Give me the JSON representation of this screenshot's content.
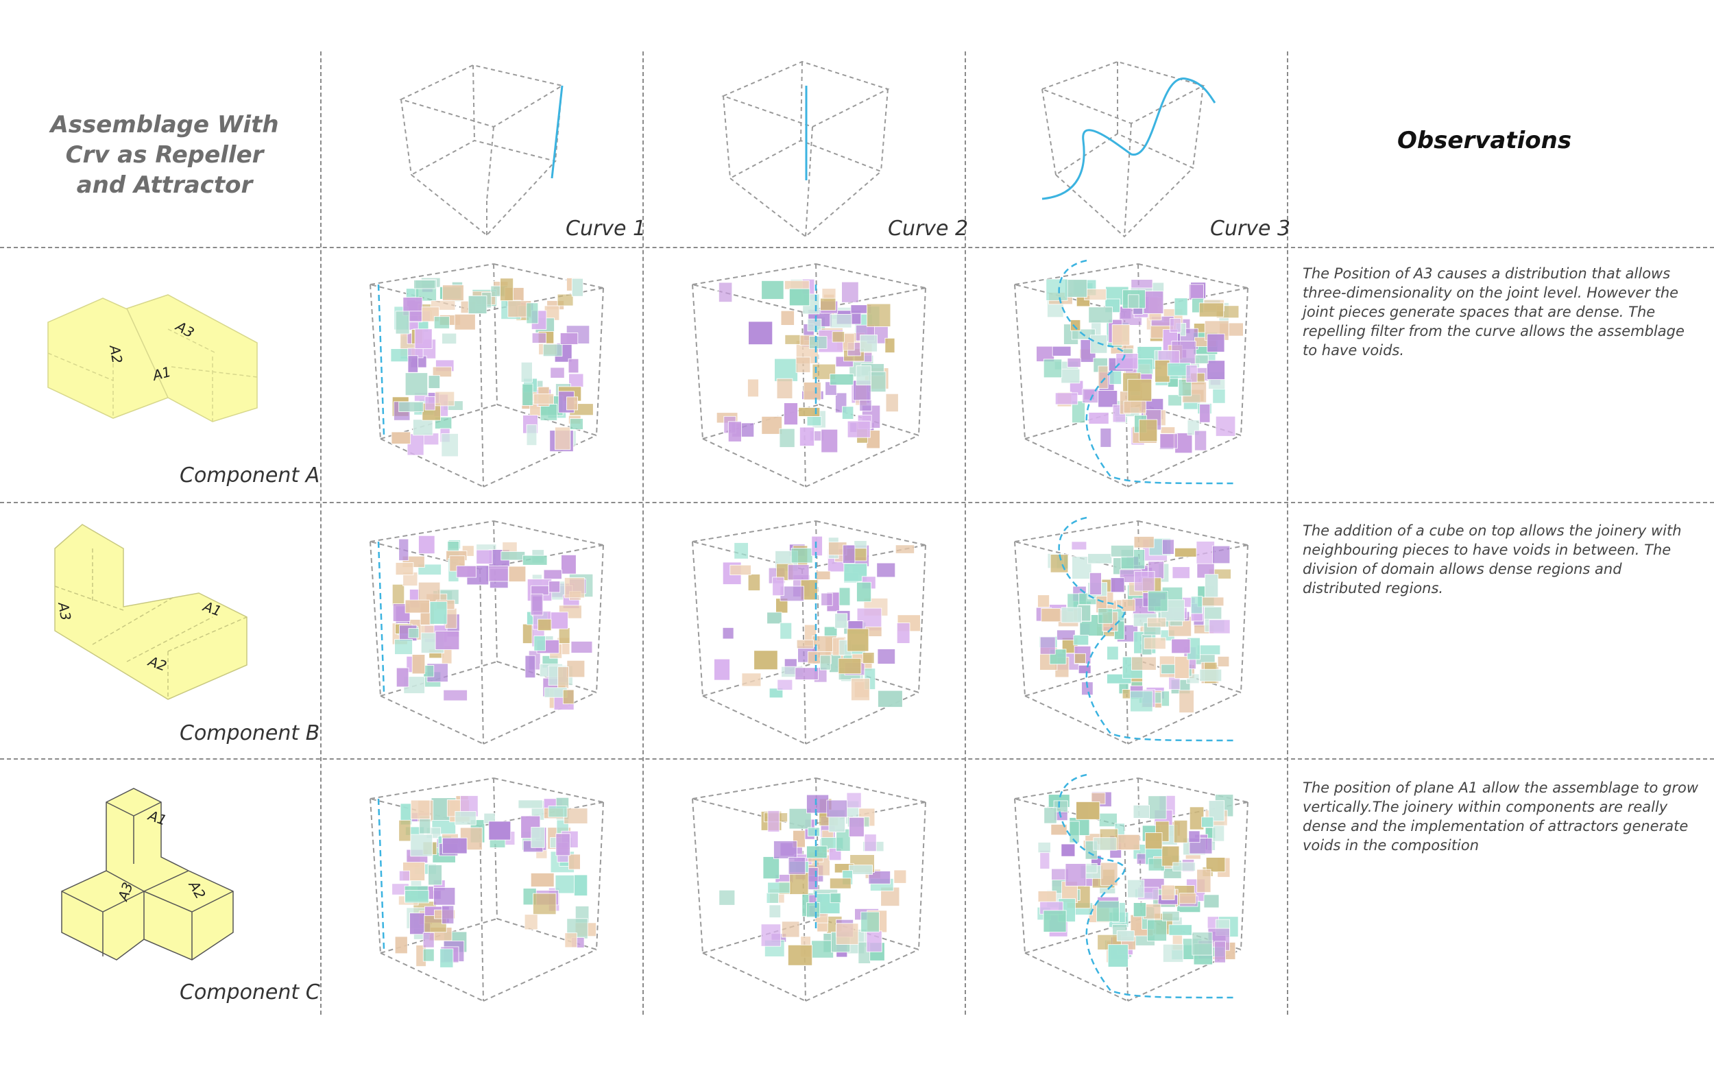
{
  "title": "Assemblage With Crv as Repeller and Attractor",
  "observations_heading": "Observations",
  "curves": [
    "Curve 1",
    "Curve 2",
    "Curve 3"
  ],
  "components": [
    {
      "label": "Component A",
      "planes": [
        "A3",
        "A2",
        "A1"
      ],
      "observation": "The Position of A3 causes a distribution that allows three-dimensionality on the joint level. However the joint pieces generate spaces that are dense. The repelling filter from the curve allows the assemblage to have voids."
    },
    {
      "label": "Component B",
      "planes": [
        "A3",
        "A1",
        "A2"
      ],
      "observation": "The addition of a cube on top allows the joinery with neighbouring pieces to have voids in between. The division of domain allows dense regions and distributed regions."
    },
    {
      "label": "Component C",
      "planes": [
        "A1",
        "A2",
        "A3"
      ],
      "observation": "The position of plane A1 allow the assemblage to grow vertically.The joinery within components are really dense and the implementation of attractors generate voids in the composition"
    }
  ],
  "colors": {
    "curve": "#3bb3e0",
    "component_fill": "#fbfba8",
    "grid": "#8a8a8a",
    "block_palette": [
      "#9fe3d3",
      "#c79be0",
      "#e7c7a8",
      "#cfb877",
      "#a9d9c9",
      "#d9b1ee",
      "#8fd8c0",
      "#b48ad9",
      "#efd3b8",
      "#cbe8e0"
    ]
  }
}
